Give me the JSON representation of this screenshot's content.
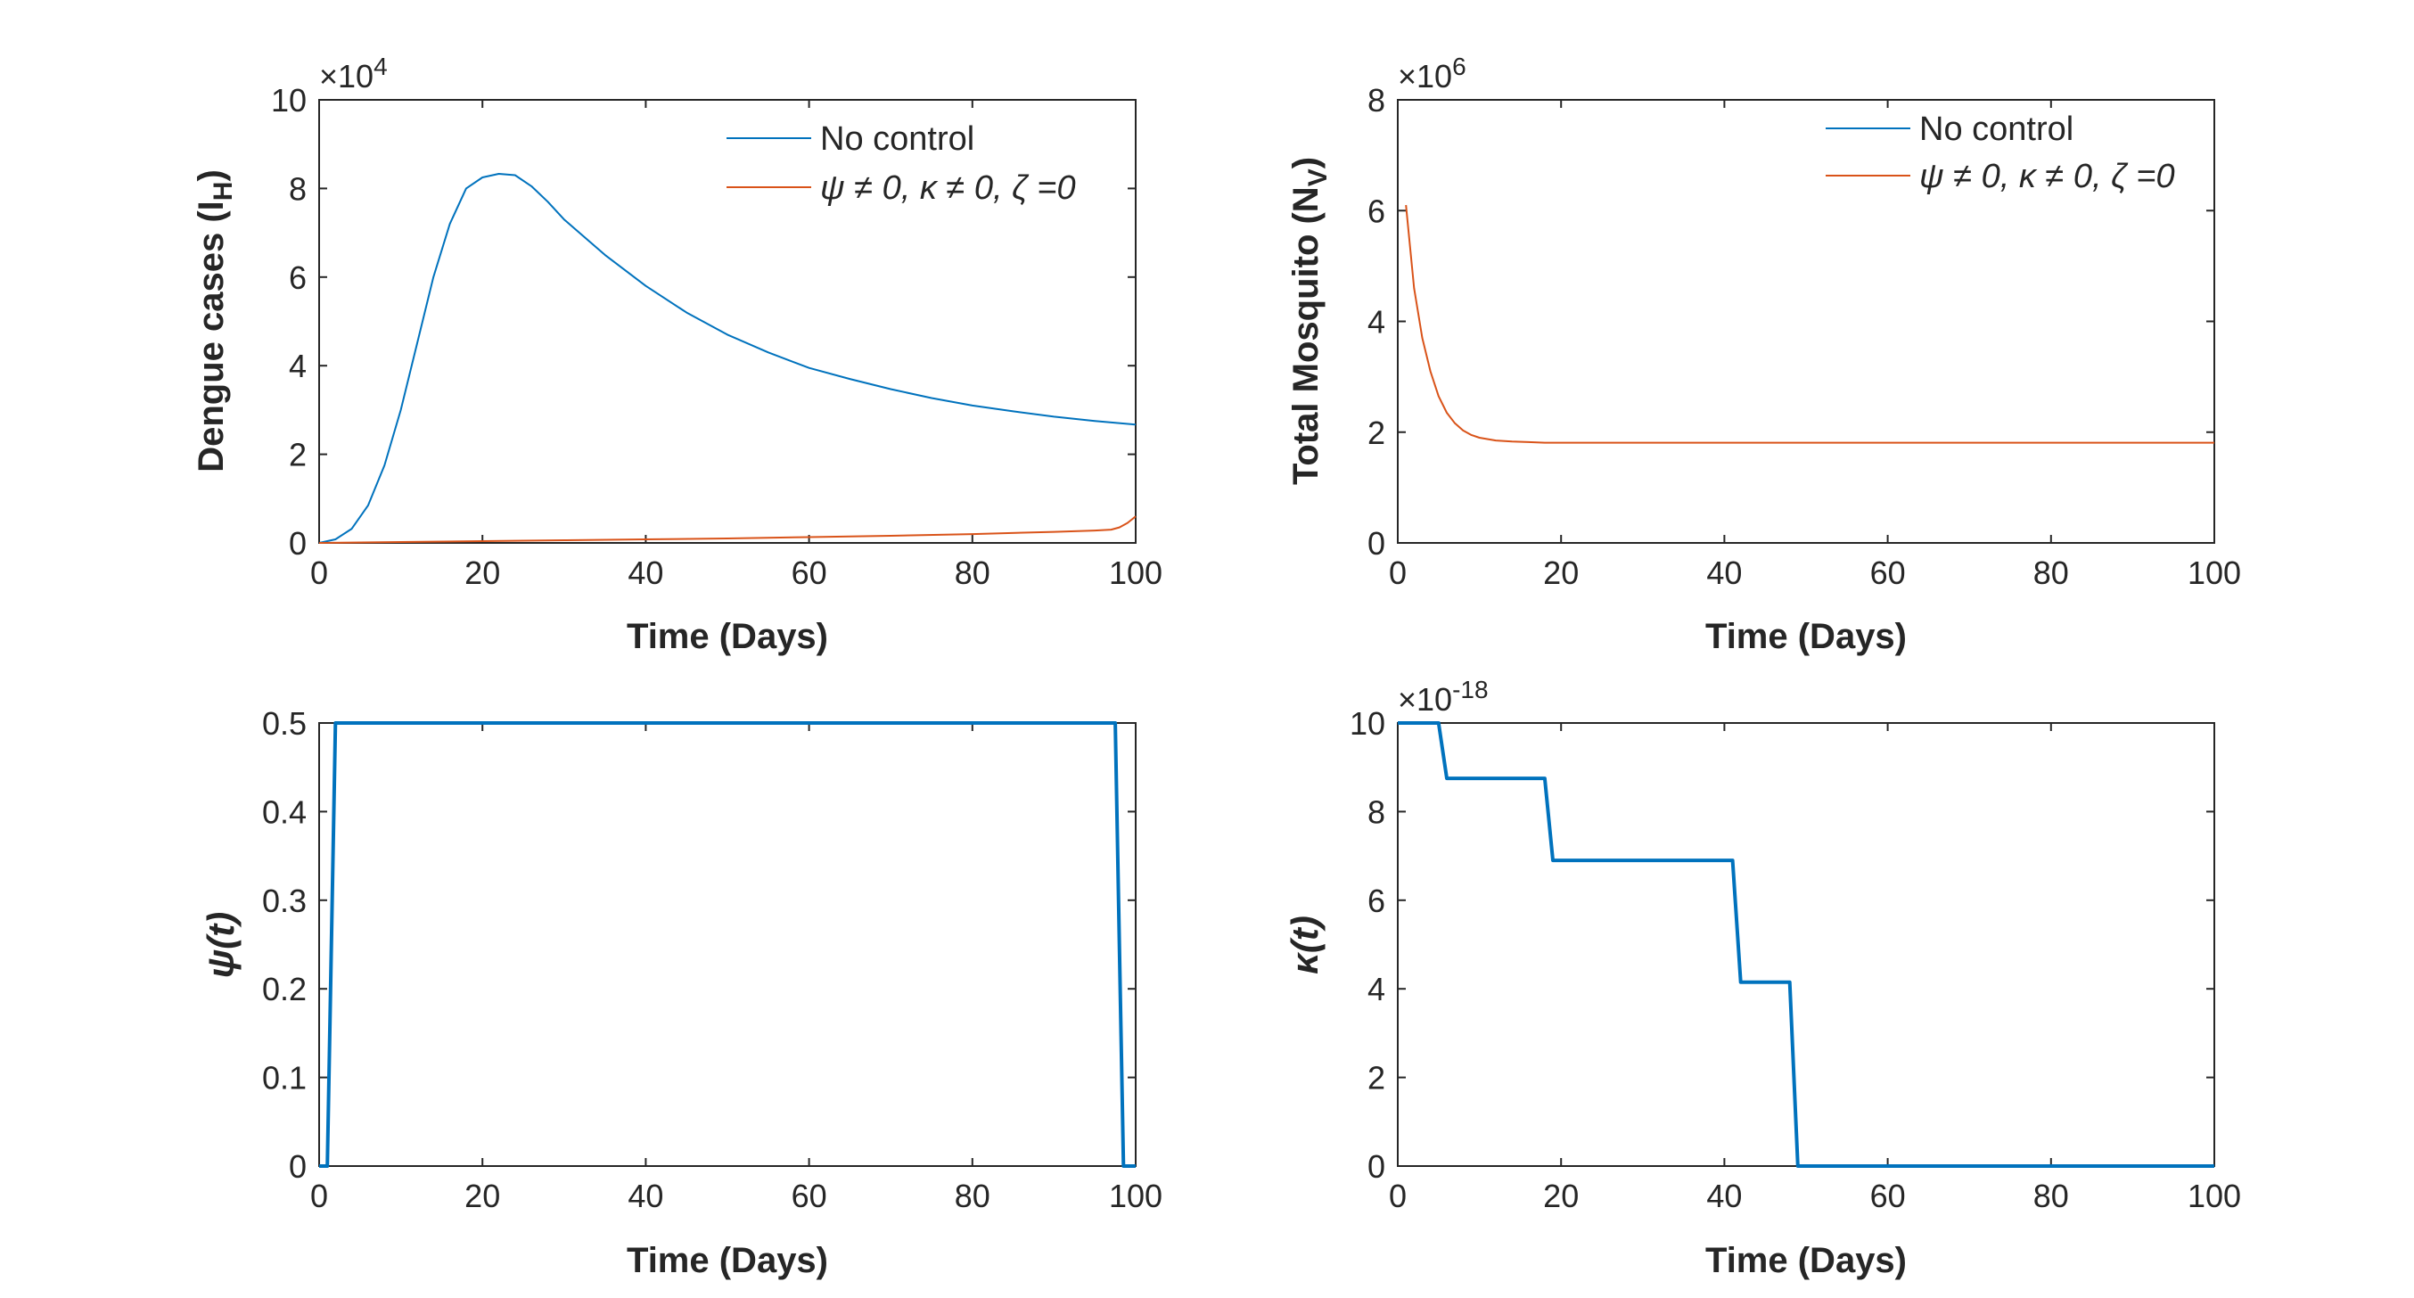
{
  "colors": {
    "blue": "#0072BD",
    "orange": "#D95319",
    "axis": "#262626"
  },
  "chart_data": [
    {
      "type": "line",
      "id": "dengue",
      "xlabel": "Time (Days)",
      "ylabel_main": "Dengue cases (I",
      "ylabel_sub": "H",
      "ylabel_close": ")",
      "exponent_base": "×10",
      "exponent_power": "4",
      "xlim": [
        0,
        100
      ],
      "ylim": [
        0,
        10
      ],
      "xticks": [
        "0",
        "20",
        "40",
        "60",
        "80",
        "100"
      ],
      "yticks": [
        "0",
        "2",
        "4",
        "6",
        "8",
        "10"
      ],
      "legend_position": "top-right",
      "series": [
        {
          "name": "No control",
          "color": "#0072BD",
          "x": [
            0,
            2,
            4,
            6,
            8,
            10,
            12,
            14,
            16,
            18,
            20,
            22,
            24,
            26,
            28,
            30,
            35,
            40,
            45,
            50,
            55,
            60,
            65,
            70,
            75,
            80,
            85,
            90,
            95,
            100
          ],
          "y": [
            0,
            0.08,
            0.32,
            0.85,
            1.75,
            3.0,
            4.5,
            6.0,
            7.2,
            8.0,
            8.25,
            8.33,
            8.3,
            8.05,
            7.7,
            7.3,
            6.5,
            5.8,
            5.2,
            4.7,
            4.3,
            3.95,
            3.7,
            3.47,
            3.27,
            3.1,
            2.97,
            2.85,
            2.75,
            2.67
          ]
        },
        {
          "name": "ψ ≠ 0, κ ≠ 0, ζ =0",
          "color": "#D95319",
          "x": [
            0,
            10,
            20,
            30,
            40,
            50,
            60,
            70,
            80,
            90,
            95,
            97,
            98,
            99,
            100
          ],
          "y": [
            0,
            0.02,
            0.04,
            0.06,
            0.08,
            0.1,
            0.13,
            0.16,
            0.2,
            0.25,
            0.28,
            0.3,
            0.35,
            0.45,
            0.6
          ]
        }
      ]
    },
    {
      "type": "line",
      "id": "mosquito",
      "xlabel": "Time (Days)",
      "ylabel_main": "Total Mosquito (N",
      "ylabel_sub": "V",
      "ylabel_close": ")",
      "exponent_base": "×10",
      "exponent_power": "6",
      "xlim": [
        0,
        100
      ],
      "ylim": [
        0,
        8
      ],
      "xticks": [
        "0",
        "20",
        "40",
        "60",
        "80",
        "100"
      ],
      "yticks": [
        "0",
        "2",
        "4",
        "6",
        "8"
      ],
      "legend_position": "top-right",
      "series": [
        {
          "name": "No control",
          "color": "#0072BD",
          "x": [],
          "y": []
        },
        {
          "name": "ψ ≠ 0, κ ≠ 0, ζ =0",
          "color": "#D95319",
          "x": [
            1,
            2,
            3,
            4,
            5,
            6,
            7,
            8,
            9,
            10,
            12,
            14,
            16,
            18,
            20,
            30,
            40,
            60,
            80,
            100
          ],
          "y": [
            6.1,
            4.6,
            3.7,
            3.1,
            2.65,
            2.35,
            2.16,
            2.03,
            1.95,
            1.9,
            1.85,
            1.83,
            1.82,
            1.81,
            1.81,
            1.81,
            1.81,
            1.81,
            1.81,
            1.81
          ]
        }
      ]
    },
    {
      "type": "line",
      "id": "psi",
      "xlabel": "Time (Days)",
      "ylabel_main": "ψ(t)",
      "xlim": [
        0,
        100
      ],
      "ylim": [
        0,
        0.5
      ],
      "xticks": [
        "0",
        "20",
        "40",
        "60",
        "80",
        "100"
      ],
      "yticks": [
        "0",
        "0.1",
        "0.2",
        "0.3",
        "0.4",
        "0.5"
      ],
      "series": [
        {
          "name": "psi",
          "color": "#0072BD",
          "x": [
            0,
            1,
            2,
            97.5,
            98.5,
            100
          ],
          "y": [
            0,
            0,
            0.5,
            0.5,
            0,
            0
          ]
        }
      ]
    },
    {
      "type": "line",
      "id": "kappa",
      "xlabel": "Time (Days)",
      "ylabel_main": "κ(t)",
      "exponent_base": "×10",
      "exponent_power": "-18",
      "xlim": [
        0,
        100
      ],
      "ylim": [
        0,
        10
      ],
      "xticks": [
        "0",
        "20",
        "40",
        "60",
        "80",
        "100"
      ],
      "yticks": [
        "0",
        "2",
        "4",
        "6",
        "8",
        "10"
      ],
      "series": [
        {
          "name": "kappa",
          "color": "#0072BD",
          "x": [
            0,
            5,
            6,
            18,
            19,
            41,
            42,
            48,
            49,
            100
          ],
          "y": [
            10,
            10,
            8.75,
            8.75,
            6.9,
            6.9,
            4.15,
            4.15,
            0,
            0
          ]
        }
      ]
    }
  ]
}
